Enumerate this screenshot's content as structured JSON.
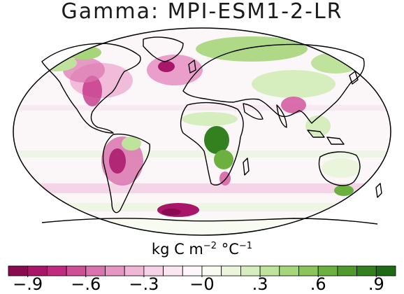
{
  "title": "Gamma: MPI-ESM1-2-LR",
  "colorbar": {
    "units_main": "kg C m",
    "units_exp1": "−2",
    "units_mid": " °C",
    "units_exp2": "−1",
    "range": [
      -1.0,
      1.0
    ],
    "colors": [
      "#8a0a52",
      "#a8166a",
      "#c02a80",
      "#cf4e98",
      "#db73af",
      "#e796c4",
      "#f0b6d6",
      "#f6d3e6",
      "#f9e6f0",
      "#fdf6fa",
      "#f7fbf2",
      "#eaf5dc",
      "#d6edbd",
      "#bfe29c",
      "#a6d57a",
      "#8bc55a",
      "#6cb13f",
      "#4e9a2c",
      "#33801e",
      "#1f6a15"
    ],
    "tick_labels": [
      "−.9",
      "−.6",
      "−.3",
      "−0",
      ".3",
      ".6",
      ".9"
    ],
    "tick_values": [
      -0.9,
      -0.6,
      -0.3,
      0.0,
      0.3,
      0.6,
      0.9
    ]
  }
}
